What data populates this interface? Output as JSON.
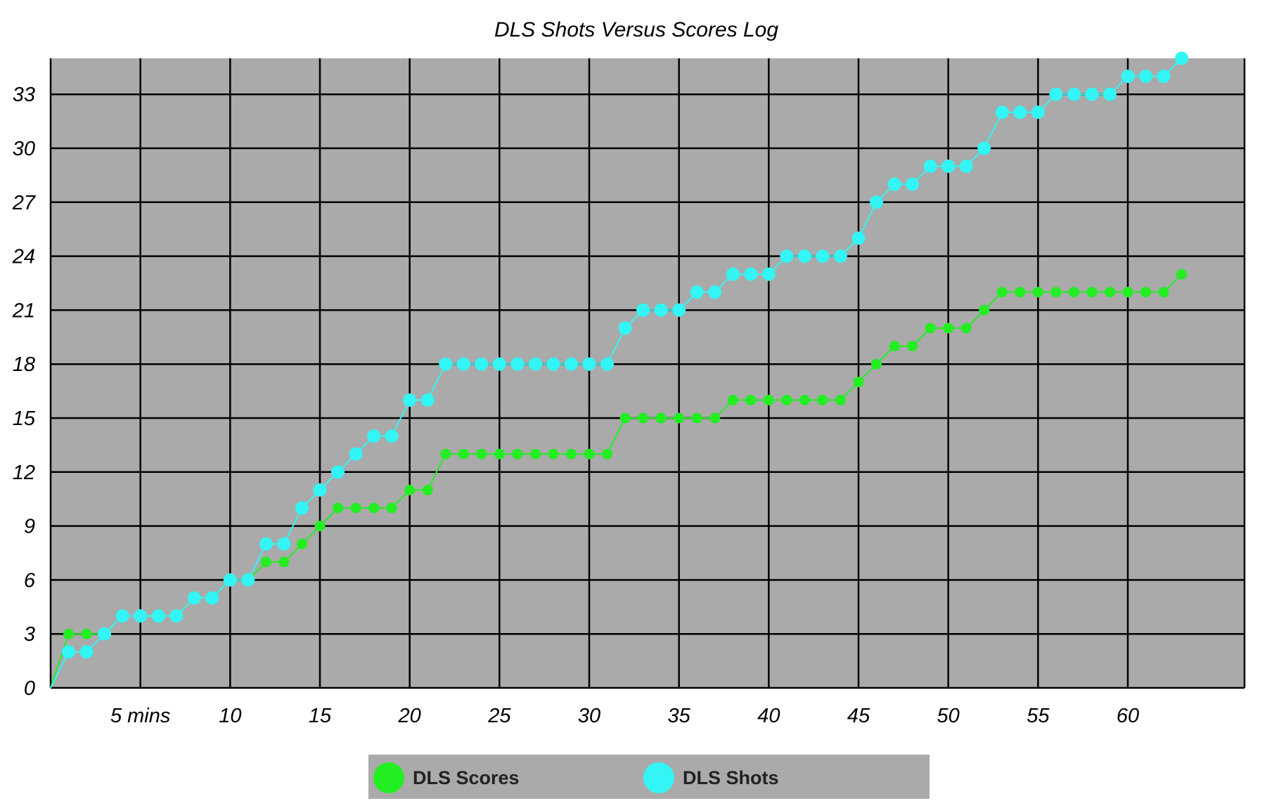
{
  "chart_data": {
    "type": "line",
    "title": "DLS Shots Versus Scores Log",
    "xlabel": "",
    "ylabel": "",
    "xlim": [
      0,
      66.5
    ],
    "ylim": [
      0,
      35
    ],
    "x_ticks": [
      {
        "value": 5,
        "label": "5 mins"
      },
      {
        "value": 10,
        "label": "10"
      },
      {
        "value": 15,
        "label": "15"
      },
      {
        "value": 20,
        "label": "20"
      },
      {
        "value": 25,
        "label": "25"
      },
      {
        "value": 30,
        "label": "30"
      },
      {
        "value": 35,
        "label": "35"
      },
      {
        "value": 40,
        "label": "40"
      },
      {
        "value": 45,
        "label": "45"
      },
      {
        "value": 50,
        "label": "50"
      },
      {
        "value": 55,
        "label": "55"
      },
      {
        "value": 60,
        "label": "60"
      }
    ],
    "y_ticks": [
      0,
      3,
      6,
      9,
      12,
      15,
      18,
      21,
      24,
      27,
      30,
      33
    ],
    "grid": true,
    "legend_position": "bottom-center",
    "x": [
      0,
      1,
      2,
      3,
      4,
      5,
      6,
      7,
      8,
      9,
      10,
      11,
      12,
      13,
      14,
      15,
      16,
      17,
      18,
      19,
      20,
      21,
      22,
      23,
      24,
      25,
      26,
      27,
      28,
      29,
      30,
      31,
      32,
      33,
      34,
      35,
      36,
      37,
      38,
      39,
      40,
      41,
      42,
      43,
      44,
      45,
      46,
      47,
      48,
      49,
      50,
      51,
      52,
      53,
      54,
      55,
      56,
      57,
      58,
      59,
      60,
      61,
      62,
      63
    ],
    "series": [
      {
        "name": "DLS Scores",
        "color": "#22ee22",
        "values": [
          0,
          3,
          3,
          3,
          4,
          4,
          4,
          4,
          5,
          5,
          6,
          6,
          7,
          7,
          8,
          9,
          10,
          10,
          10,
          10,
          11,
          11,
          13,
          13,
          13,
          13,
          13,
          13,
          13,
          13,
          13,
          13,
          15,
          15,
          15,
          15,
          15,
          15,
          16,
          16,
          16,
          16,
          16,
          16,
          16,
          17,
          18,
          19,
          19,
          20,
          20,
          20,
          21,
          22,
          22,
          22,
          22,
          22,
          22,
          22,
          22,
          22,
          22,
          23
        ]
      },
      {
        "name": "DLS Shots",
        "color": "#33f5f5",
        "values": [
          0,
          2,
          2,
          3,
          4,
          4,
          4,
          4,
          5,
          5,
          6,
          6,
          8,
          8,
          10,
          11,
          12,
          13,
          14,
          14,
          16,
          16,
          18,
          18,
          18,
          18,
          18,
          18,
          18,
          18,
          18,
          18,
          20,
          21,
          21,
          21,
          22,
          22,
          23,
          23,
          23,
          24,
          24,
          24,
          24,
          25,
          27,
          28,
          28,
          29,
          29,
          29,
          30,
          32,
          32,
          32,
          33,
          33,
          33,
          33,
          34,
          34,
          34,
          35
        ]
      }
    ]
  }
}
